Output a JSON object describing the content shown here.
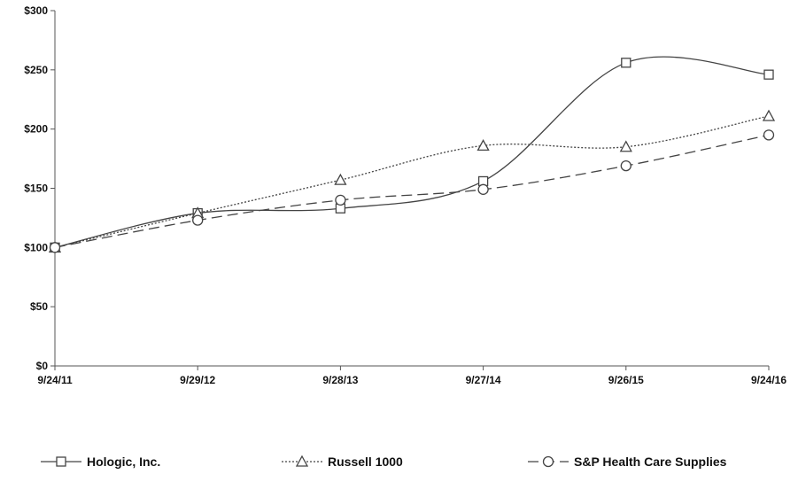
{
  "chart_data": {
    "type": "line",
    "categories": [
      "9/24/11",
      "9/29/12",
      "9/28/13",
      "9/27/14",
      "9/26/15",
      "9/24/16"
    ],
    "ylim": [
      0,
      300
    ],
    "yticks": [
      0,
      50,
      100,
      150,
      200,
      250,
      300
    ],
    "ytick_labels": [
      "$0",
      "$50",
      "$100",
      "$150",
      "$200",
      "$250",
      "$300"
    ],
    "grid": false,
    "legend_position": "bottom",
    "series": [
      {
        "name": "Hologic, Inc.",
        "values": [
          100,
          129,
          133,
          156,
          256,
          246
        ],
        "marker": "square",
        "dash": "solid"
      },
      {
        "name": "Russell 1000",
        "values": [
          100,
          129,
          157,
          186,
          185,
          211
        ],
        "marker": "triangle",
        "dash": "dotted"
      },
      {
        "name": "S&P Health Care Supplies",
        "values": [
          100,
          123,
          140,
          149,
          169,
          195
        ],
        "marker": "circle",
        "dash": "dashed"
      }
    ]
  }
}
